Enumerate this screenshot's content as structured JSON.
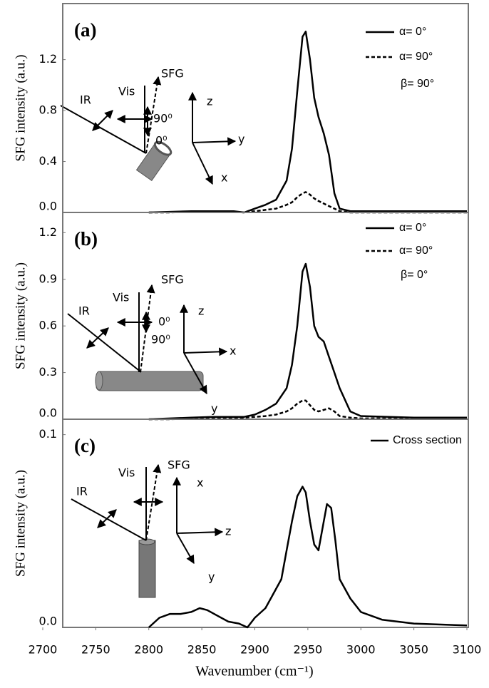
{
  "chart_data": [
    {
      "type": "line",
      "panel_label": "(a)",
      "ylabel": "SFG  intensity  (a.u.)",
      "xlim": [
        2700,
        3100
      ],
      "ylim": [
        0,
        1.64
      ],
      "yticks": [
        {
          "value": 0,
          "label": "0.0"
        },
        0.4,
        0.8,
        1.2
      ],
      "x": [
        2800,
        2820,
        2840,
        2860,
        2880,
        2890,
        2900,
        2910,
        2920,
        2930,
        2935,
        2940,
        2945,
        2948,
        2952,
        2956,
        2960,
        2965,
        2970,
        2975,
        2980,
        2990,
        3000,
        3050,
        3100
      ],
      "series": [
        {
          "name": "α= 0°",
          "color": "#000000",
          "dashed": false,
          "values": [
            0,
            0.005,
            0.01,
            0.01,
            0.01,
            0.0,
            0.03,
            0.06,
            0.1,
            0.25,
            0.5,
            0.95,
            1.38,
            1.42,
            1.2,
            0.9,
            0.75,
            0.62,
            0.45,
            0.15,
            0.03,
            0.01,
            0.01,
            0.01,
            0.01
          ]
        },
        {
          "name": "α= 90°",
          "color": "#000000",
          "dashed": true,
          "values": [
            0,
            0,
            0.005,
            0.005,
            0.005,
            0,
            0.01,
            0.02,
            0.03,
            0.06,
            0.08,
            0.12,
            0.15,
            0.16,
            0.14,
            0.11,
            0.09,
            0.07,
            0.05,
            0.03,
            0.01,
            0.0,
            0,
            0,
            0
          ]
        }
      ],
      "annotation": "β= 90°",
      "inset_labels": [
        "IR",
        "Vis",
        "SFG",
        "90⁰",
        "0⁰",
        "z",
        "y",
        "x"
      ]
    },
    {
      "type": "line",
      "panel_label": "(b)",
      "ylabel": "SFG  intensity  (a.u.)",
      "xlim": [
        2700,
        3100
      ],
      "ylim": [
        0,
        1.33
      ],
      "yticks": [
        {
          "value": 0,
          "label": "0.0"
        },
        0.3,
        0.6,
        0.9,
        1.2
      ],
      "x": [
        2800,
        2820,
        2840,
        2860,
        2880,
        2890,
        2900,
        2910,
        2920,
        2930,
        2935,
        2940,
        2945,
        2948,
        2952,
        2956,
        2960,
        2965,
        2970,
        2975,
        2980,
        2990,
        3000,
        3050,
        3100
      ],
      "series": [
        {
          "name": "α= 0°",
          "color": "#000000",
          "dashed": false,
          "values": [
            0,
            0.005,
            0.01,
            0.015,
            0.015,
            0.015,
            0.03,
            0.06,
            0.1,
            0.2,
            0.35,
            0.6,
            0.95,
            1.0,
            0.85,
            0.6,
            0.53,
            0.5,
            0.4,
            0.3,
            0.2,
            0.05,
            0.02,
            0.01,
            0.01
          ]
        },
        {
          "name": "α= 90°",
          "color": "#000000",
          "dashed": true,
          "values": [
            0,
            0,
            0.005,
            0.01,
            0.01,
            0.01,
            0.015,
            0.02,
            0.03,
            0.05,
            0.07,
            0.1,
            0.12,
            0.12,
            0.09,
            0.06,
            0.05,
            0.06,
            0.07,
            0.05,
            0.02,
            0.01,
            0.005,
            0.005,
            0.005
          ]
        }
      ],
      "annotation": "β= 0°",
      "inset_labels": [
        "IR",
        "Vis",
        "SFG",
        "0⁰",
        "90⁰",
        "z",
        "x",
        "y"
      ]
    },
    {
      "type": "line",
      "panel_label": "(c)",
      "ylabel": "SFG intensity (a.u.)",
      "xlim": [
        2700,
        3100
      ],
      "ylim": [
        0,
        0.108
      ],
      "yticks": [
        {
          "value": 0,
          "label": "0.0"
        },
        0.1
      ],
      "xticks": [
        2700,
        2750,
        2800,
        2850,
        2900,
        2950,
        3000,
        3050,
        3100
      ],
      "xlabel": "Wavenumber  (cm⁻¹)",
      "x": [
        2800,
        2810,
        2820,
        2830,
        2840,
        2848,
        2855,
        2865,
        2875,
        2885,
        2893,
        2900,
        2910,
        2920,
        2925,
        2930,
        2935,
        2940,
        2945,
        2948,
        2952,
        2956,
        2960,
        2965,
        2968,
        2972,
        2976,
        2980,
        2990,
        3000,
        3020,
        3050,
        3100
      ],
      "series": [
        {
          "name": "Cross section",
          "color": "#000000",
          "dashed": false,
          "values": [
            0,
            0.005,
            0.007,
            0.007,
            0.008,
            0.01,
            0.009,
            0.006,
            0.003,
            0.002,
            0.0,
            0.005,
            0.01,
            0.02,
            0.025,
            0.04,
            0.055,
            0.068,
            0.073,
            0.07,
            0.055,
            0.043,
            0.04,
            0.055,
            0.064,
            0.062,
            0.045,
            0.025,
            0.015,
            0.008,
            0.004,
            0.002,
            0.001
          ]
        }
      ],
      "inset_labels": [
        "IR",
        "Vis",
        "SFG",
        "x",
        "z",
        "y"
      ]
    }
  ]
}
